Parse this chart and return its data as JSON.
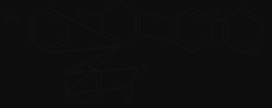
{
  "bg_color": "#1a1a1a",
  "line_color": "#000000",
  "bond_color": "#101010",
  "text_color": "#101010",
  "fig_width": 3.42,
  "fig_height": 1.36,
  "dpi": 100
}
